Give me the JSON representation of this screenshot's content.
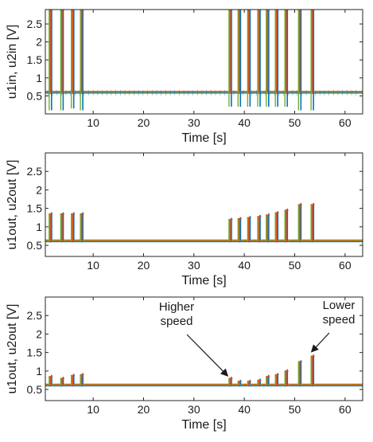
{
  "chart_data": [
    {
      "type": "line",
      "title": "",
      "xlabel": "Time [s]",
      "ylabel": "u1in, u2in [V]",
      "xlim": [
        0.5,
        63.5
      ],
      "ylim": [
        0.0,
        2.9
      ],
      "xticks": [
        10,
        20,
        30,
        40,
        50,
        60
      ],
      "xtick_labels": [
        "10",
        "20",
        "30",
        "40",
        "50",
        "60"
      ],
      "yticks": [
        0.5,
        1,
        1.5,
        2,
        2.5
      ],
      "ytick_labels": [
        "0.5",
        "1",
        "1.5",
        "2",
        "2.5"
      ],
      "baseline": 0.6,
      "series_colors": [
        "#0072bd",
        "#d95319",
        "#77ac30"
      ],
      "spikes": [
        {
          "t": 1.5,
          "peak": 2.9,
          "trough": 0.1
        },
        {
          "t": 3.8,
          "peak": 2.9,
          "trough": 0.1
        },
        {
          "t": 5.9,
          "peak": 2.9,
          "trough": 0.15
        },
        {
          "t": 7.7,
          "peak": 2.9,
          "trough": 0.1
        },
        {
          "t": 37.2,
          "peak": 2.9,
          "trough": 0.2
        },
        {
          "t": 39.0,
          "peak": 2.9,
          "trough": 0.2
        },
        {
          "t": 40.9,
          "peak": 2.9,
          "trough": 0.2
        },
        {
          "t": 42.9,
          "peak": 2.9,
          "trough": 0.2
        },
        {
          "t": 44.6,
          "peak": 2.9,
          "trough": 0.2
        },
        {
          "t": 46.4,
          "peak": 2.9,
          "trough": 0.2
        },
        {
          "t": 48.3,
          "peak": 2.9,
          "trough": 0.2
        },
        {
          "t": 51.0,
          "peak": 2.9,
          "trough": 0.1
        },
        {
          "t": 53.5,
          "peak": 2.9,
          "trough": 0.1
        }
      ],
      "annotations": []
    },
    {
      "type": "line",
      "title": "",
      "xlabel": "Time [s]",
      "ylabel": "u1out, u2out [V]",
      "xlim": [
        0.5,
        63.5
      ],
      "ylim": [
        0.2,
        3.0
      ],
      "xticks": [
        10,
        20,
        30,
        40,
        50,
        60
      ],
      "xtick_labels": [
        "10",
        "20",
        "30",
        "40",
        "50",
        "60"
      ],
      "yticks": [
        0.5,
        1,
        1.5,
        2,
        2.5
      ],
      "ytick_labels": [
        "0.5",
        "1",
        "1.5",
        "2",
        "2.5"
      ],
      "baseline": 0.62,
      "series_colors": [
        "#0072bd",
        "#d95319",
        "#77ac30"
      ],
      "spikes": [
        {
          "t": 1.5,
          "peak": 1.35
        },
        {
          "t": 3.8,
          "peak": 1.35
        },
        {
          "t": 5.9,
          "peak": 1.35
        },
        {
          "t": 7.7,
          "peak": 1.35
        },
        {
          "t": 37.2,
          "peak": 1.2
        },
        {
          "t": 39.0,
          "peak": 1.22
        },
        {
          "t": 40.9,
          "peak": 1.25
        },
        {
          "t": 42.9,
          "peak": 1.28
        },
        {
          "t": 44.6,
          "peak": 1.32
        },
        {
          "t": 46.4,
          "peak": 1.38
        },
        {
          "t": 48.3,
          "peak": 1.45
        },
        {
          "t": 51.0,
          "peak": 1.6
        },
        {
          "t": 53.5,
          "peak": 1.6
        }
      ],
      "annotations": []
    },
    {
      "type": "line",
      "title": "",
      "xlabel": "Time [s]",
      "ylabel": "u1out, u2out [V]",
      "xlim": [
        0.5,
        63.5
      ],
      "ylim": [
        0.2,
        3.0
      ],
      "xticks": [
        10,
        20,
        30,
        40,
        50,
        60
      ],
      "xtick_labels": [
        "10",
        "20",
        "30",
        "40",
        "50",
        "60"
      ],
      "yticks": [
        0.5,
        1,
        1.5,
        2,
        2.5
      ],
      "ytick_labels": [
        "0.5",
        "1",
        "1.5",
        "2",
        "2.5"
      ],
      "baseline": 0.62,
      "series_colors": [
        "#0072bd",
        "#d95319",
        "#77ac30"
      ],
      "spikes": [
        {
          "t": 1.5,
          "peak": 0.85
        },
        {
          "t": 3.8,
          "peak": 0.8
        },
        {
          "t": 5.9,
          "peak": 0.88
        },
        {
          "t": 7.7,
          "peak": 0.9
        },
        {
          "t": 37.2,
          "peak": 0.8
        },
        {
          "t": 39.0,
          "peak": 0.72
        },
        {
          "t": 40.9,
          "peak": 0.72
        },
        {
          "t": 42.9,
          "peak": 0.75
        },
        {
          "t": 44.6,
          "peak": 0.85
        },
        {
          "t": 46.4,
          "peak": 0.9
        },
        {
          "t": 48.3,
          "peak": 1.0
        },
        {
          "t": 51.0,
          "peak": 1.25
        },
        {
          "t": 53.5,
          "peak": 1.4
        }
      ],
      "annotations": [
        {
          "lines": [
            "Higher",
            "speed"
          ],
          "arrow_to": [
            37.2,
            0.8
          ]
        },
        {
          "lines": [
            "Lower",
            "speed"
          ],
          "arrow_to": [
            53.8,
            1.45
          ]
        }
      ]
    }
  ]
}
